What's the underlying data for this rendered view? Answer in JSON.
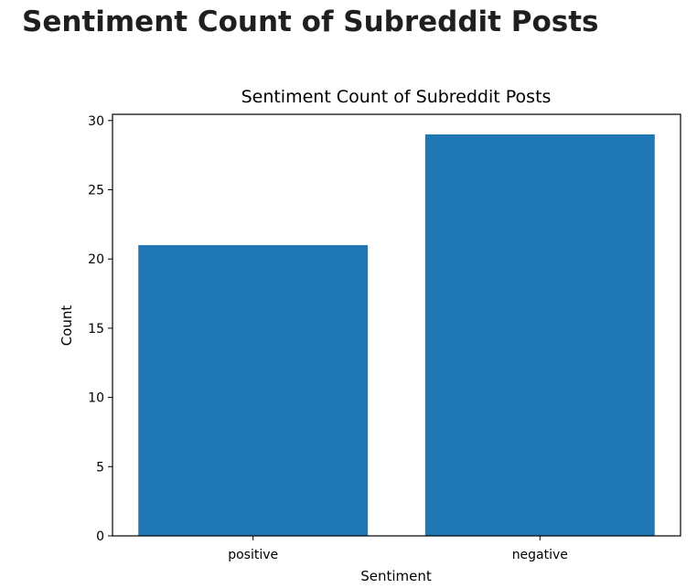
{
  "page": {
    "heading": "Sentiment Count of Subreddit Posts"
  },
  "chart_data": {
    "type": "bar",
    "title": "Sentiment Count of Subreddit Posts",
    "xlabel": "Sentiment",
    "ylabel": "Count",
    "categories": [
      "positive",
      "negative"
    ],
    "values": [
      21,
      29
    ],
    "ylim": [
      0,
      30.45
    ],
    "yticks": [
      0,
      5,
      10,
      15,
      20,
      25,
      30
    ],
    "bar_color": "#1f77b4",
    "grid": false,
    "legend": "none"
  }
}
